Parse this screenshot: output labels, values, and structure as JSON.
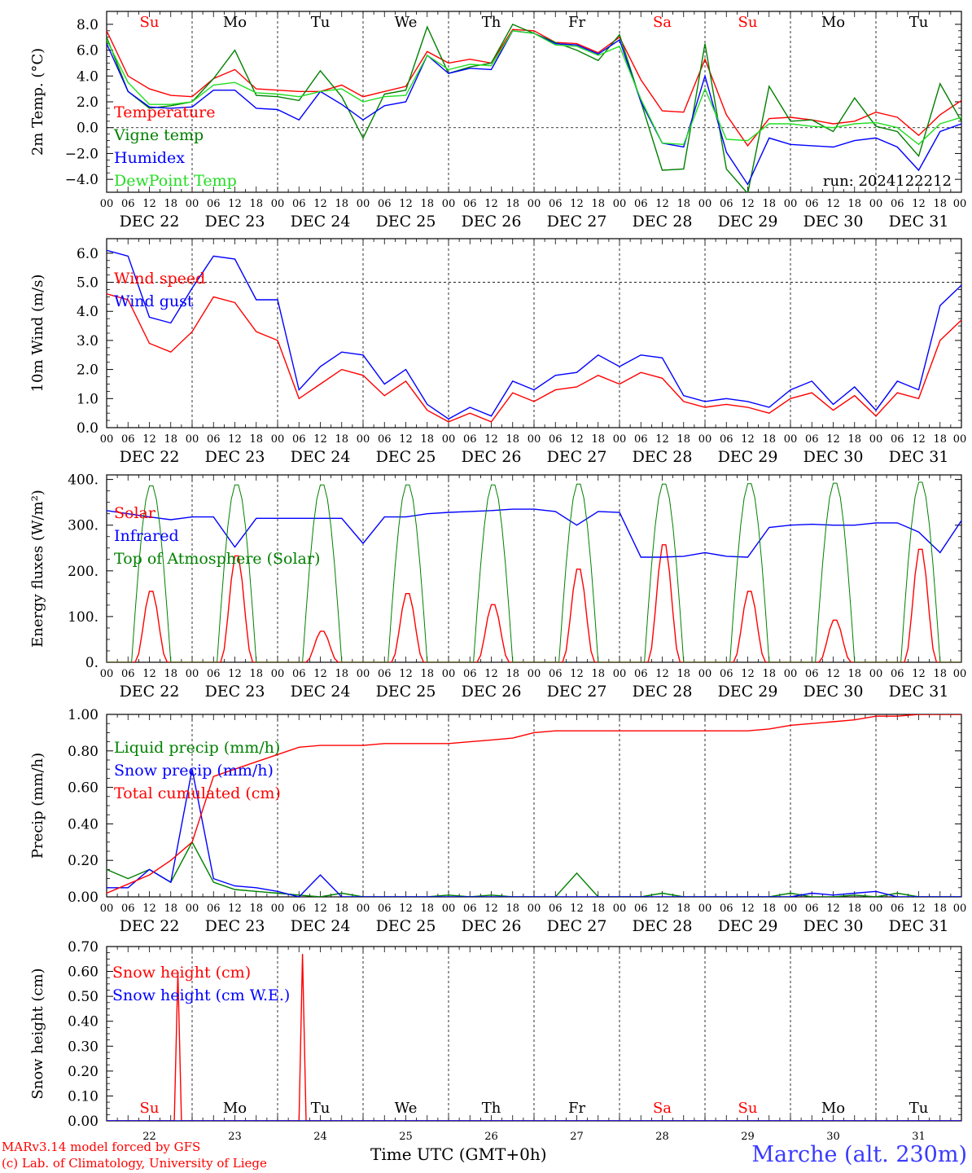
{
  "footer": {
    "model_line": "MARv3.14 model forced by GFS",
    "lab_line": "(c) Lab. of Climatology, University of Liege",
    "xaxis_label": "Time UTC (GMT+0h)",
    "station": "Marche (alt. 230m)"
  },
  "colors": {
    "red": "#ff0000",
    "darkgreen": "#008000",
    "blue": "#0000ff",
    "lightgreen": "#22dd22",
    "weekend": "#ff0000",
    "weekday": "#000000"
  },
  "days": {
    "names": [
      "Su",
      "Mo",
      "Tu",
      "We",
      "Th",
      "Fr",
      "Sa",
      "Su",
      "Mo",
      "Tu"
    ],
    "weekend": [
      true,
      false,
      false,
      false,
      false,
      false,
      true,
      true,
      false,
      false
    ],
    "dates": [
      "DEC 22",
      "DEC 23",
      "DEC 24",
      "DEC 25",
      "DEC 26",
      "DEC 27",
      "DEC 28",
      "DEC 29",
      "DEC 30",
      "DEC 31"
    ],
    "numbers": [
      "22",
      "23",
      "24",
      "25",
      "26",
      "27",
      "28",
      "29",
      "30",
      "31"
    ],
    "hour_ticks": [
      "00",
      "06",
      "12",
      "18"
    ],
    "final_tick": "00"
  },
  "chart_data": [
    {
      "type": "line",
      "ylabel": "2m Temp. (°C)",
      "ylim": [
        -5,
        9
      ],
      "yticks": [
        "8.0",
        "6.0",
        "4.0",
        "2.0",
        "0.0",
        "−2.0",
        "−4.0"
      ],
      "ytick_values": [
        8,
        6,
        4,
        2,
        0,
        -2,
        -4
      ],
      "reference_line": 0,
      "annotation": "run: 2024122212",
      "x_hours": [
        0,
        6,
        12,
        18,
        24,
        30,
        36,
        42,
        48,
        54,
        60,
        66,
        72,
        78,
        84,
        90,
        96,
        102,
        108,
        114,
        120,
        126,
        132,
        138,
        144,
        150,
        156,
        162,
        168,
        174,
        180,
        186,
        192,
        198,
        204,
        210,
        216,
        222,
        228,
        234,
        240
      ],
      "series": [
        {
          "name": "Temperature",
          "color": "red",
          "values": [
            7.5,
            4.0,
            3.0,
            2.5,
            2.4,
            3.8,
            4.5,
            3.0,
            2.9,
            2.8,
            2.8,
            3.3,
            2.4,
            2.8,
            3.2,
            5.9,
            5.0,
            5.3,
            5.0,
            7.6,
            7.5,
            6.6,
            6.5,
            5.8,
            7.0,
            3.7,
            1.3,
            1.2,
            5.3,
            1.0,
            -1.4,
            0.7,
            0.8,
            0.6,
            0.3,
            0.5,
            1.2,
            0.8,
            -0.6,
            1.0,
            2.1
          ]
        },
        {
          "name": "Vigne temp",
          "color": "darkgreen",
          "values": [
            7.0,
            2.8,
            1.5,
            1.7,
            2.0,
            3.8,
            6.0,
            2.5,
            2.4,
            2.1,
            4.4,
            2.4,
            -0.8,
            2.6,
            2.9,
            7.8,
            4.2,
            4.7,
            5.0,
            8.0,
            7.3,
            6.6,
            6.0,
            5.2,
            7.2,
            2.0,
            -3.3,
            -3.2,
            6.5,
            -3.2,
            -5.1,
            3.2,
            0.5,
            0.6,
            -0.3,
            2.3,
            0.1,
            -0.3,
            -2.2,
            3.4,
            0.5
          ]
        },
        {
          "name": "Humidex",
          "color": "blue",
          "values": [
            6.5,
            2.8,
            1.6,
            1.5,
            1.6,
            2.9,
            2.9,
            1.5,
            1.4,
            0.6,
            2.8,
            1.8,
            0.6,
            1.7,
            2.0,
            5.6,
            4.2,
            4.6,
            4.5,
            7.5,
            7.3,
            6.5,
            6.4,
            5.7,
            6.8,
            2.0,
            -1.2,
            -1.5,
            4.0,
            -1.9,
            -4.4,
            -0.8,
            -1.3,
            -1.4,
            -1.5,
            -1.0,
            -0.8,
            -1.5,
            -3.3,
            -0.3,
            0.3
          ]
        },
        {
          "name": "DewPoint Temp",
          "color": "lightgreen",
          "values": [
            6.8,
            3.5,
            1.8,
            1.8,
            2.0,
            3.3,
            3.5,
            2.7,
            2.6,
            2.4,
            2.8,
            3.0,
            2.0,
            2.4,
            2.5,
            5.6,
            4.5,
            4.9,
            4.8,
            7.5,
            7.3,
            6.4,
            6.3,
            5.6,
            6.3,
            2.2,
            -1.2,
            -1.3,
            3.0,
            -0.9,
            -1.0,
            0.3,
            0.3,
            0.1,
            0.0,
            0.3,
            0.4,
            0.0,
            -1.3,
            0.3,
            0.8
          ]
        }
      ]
    },
    {
      "type": "line",
      "ylabel": "10m Wind (m/s)",
      "ylim": [
        0,
        6.5
      ],
      "yticks": [
        "6.0",
        "5.0",
        "4.0",
        "3.0",
        "2.0",
        "1.0",
        "0.0"
      ],
      "ytick_values": [
        6,
        5,
        4,
        3,
        2,
        1,
        0
      ],
      "reference_line": 5,
      "x_hours": [
        0,
        6,
        12,
        18,
        24,
        30,
        36,
        42,
        48,
        54,
        60,
        66,
        72,
        78,
        84,
        90,
        96,
        102,
        108,
        114,
        120,
        126,
        132,
        138,
        144,
        150,
        156,
        162,
        168,
        174,
        180,
        186,
        192,
        198,
        204,
        210,
        216,
        222,
        228,
        234,
        240
      ],
      "series": [
        {
          "name": "Wind speed",
          "color": "red",
          "values": [
            4.6,
            4.4,
            2.9,
            2.6,
            3.3,
            4.5,
            4.3,
            3.3,
            3.0,
            1.0,
            1.5,
            2.0,
            1.8,
            1.1,
            1.6,
            0.6,
            0.2,
            0.5,
            0.2,
            1.2,
            0.9,
            1.3,
            1.4,
            1.8,
            1.5,
            1.9,
            1.7,
            0.9,
            0.7,
            0.8,
            0.7,
            0.5,
            1.0,
            1.2,
            0.6,
            1.1,
            0.4,
            1.2,
            1.0,
            3.0,
            3.7
          ]
        },
        {
          "name": "Wind gust",
          "color": "blue",
          "values": [
            6.1,
            5.9,
            3.8,
            3.6,
            4.8,
            5.9,
            5.8,
            4.4,
            4.4,
            1.3,
            2.1,
            2.6,
            2.5,
            1.5,
            2.0,
            0.8,
            0.3,
            0.7,
            0.4,
            1.6,
            1.3,
            1.8,
            1.9,
            2.5,
            2.1,
            2.5,
            2.4,
            1.1,
            0.9,
            1.0,
            0.9,
            0.7,
            1.3,
            1.6,
            0.8,
            1.4,
            0.6,
            1.6,
            1.3,
            4.2,
            4.9
          ]
        }
      ]
    },
    {
      "type": "line",
      "ylabel": "Energy fluxes (W/m²)",
      "ylim": [
        0,
        410
      ],
      "yticks": [
        "400.",
        "300.",
        "200.",
        "100.",
        "0."
      ],
      "ytick_values": [
        400,
        300,
        200,
        100,
        0
      ],
      "series": [
        {
          "name": "Solar",
          "color": "red",
          "day_peaks": [
            160,
            240,
            70,
            155,
            130,
            210,
            265,
            160,
            95,
            255
          ]
        },
        {
          "name": "Infrared",
          "color": "blue",
          "x_hours": [
            0,
            6,
            12,
            18,
            24,
            30,
            36,
            42,
            48,
            54,
            60,
            66,
            72,
            78,
            84,
            90,
            96,
            102,
            108,
            114,
            120,
            126,
            132,
            138,
            144,
            150,
            156,
            162,
            168,
            174,
            180,
            186,
            192,
            198,
            204,
            210,
            216,
            222,
            228,
            234,
            240
          ],
          "values": [
            332,
            325,
            318,
            312,
            318,
            318,
            252,
            315,
            315,
            315,
            315,
            315,
            260,
            318,
            318,
            325,
            328,
            330,
            332,
            335,
            335,
            330,
            300,
            330,
            328,
            230,
            230,
            232,
            240,
            232,
            230,
            295,
            300,
            302,
            300,
            300,
            305,
            305,
            285,
            240,
            310
          ]
        },
        {
          "name": "Top of Atmosphere (Solar)",
          "color": "darkgreen",
          "day_peaks": [
            390,
            392,
            392,
            392,
            392,
            394,
            394,
            395,
            396,
            398
          ]
        }
      ]
    },
    {
      "type": "line",
      "ylabel": "Precip (mm/h)",
      "ylim": [
        0,
        1.0
      ],
      "yticks": [
        "1.00",
        "0.80",
        "0.60",
        "0.40",
        "0.20",
        "0.00"
      ],
      "ytick_values": [
        1.0,
        0.8,
        0.6,
        0.4,
        0.2,
        0.0
      ],
      "x_hours": [
        0,
        6,
        12,
        18,
        24,
        30,
        36,
        42,
        48,
        54,
        60,
        66,
        72,
        78,
        84,
        90,
        96,
        102,
        108,
        114,
        120,
        126,
        132,
        138,
        144,
        150,
        156,
        162,
        168,
        174,
        180,
        186,
        192,
        198,
        204,
        210,
        216,
        222,
        228,
        234,
        240
      ],
      "series": [
        {
          "name": "Liquid precip (mm/h)",
          "color": "darkgreen",
          "values": [
            0.15,
            0.1,
            0.15,
            0.08,
            0.3,
            0.08,
            0.04,
            0.03,
            0.02,
            0.01,
            0.0,
            0.02,
            0.0,
            0.0,
            0.0,
            0.0,
            0.01,
            0.0,
            0.01,
            0.0,
            0.0,
            0.0,
            0.13,
            0.0,
            0.0,
            0.0,
            0.02,
            0.0,
            0.0,
            0.0,
            0.0,
            0.0,
            0.02,
            0.0,
            0.0,
            0.01,
            0.0,
            0.02,
            0.0,
            0.0,
            0.0
          ]
        },
        {
          "name": "Snow precip (mm/h)",
          "color": "blue",
          "values": [
            0.05,
            0.05,
            0.15,
            0.08,
            0.7,
            0.1,
            0.06,
            0.05,
            0.03,
            0.0,
            0.12,
            0.0,
            0.0,
            0.0,
            0.0,
            0.0,
            0.0,
            0.0,
            0.0,
            0.0,
            0.0,
            0.0,
            0.0,
            0.0,
            0.0,
            0.0,
            0.0,
            0.0,
            0.0,
            0.0,
            0.0,
            0.0,
            0.0,
            0.02,
            0.01,
            0.02,
            0.03,
            0.0,
            0.0,
            0.0,
            0.0
          ]
        },
        {
          "name": "Total cumulated (cm)",
          "color": "red",
          "values": [
            0.02,
            0.07,
            0.12,
            0.2,
            0.3,
            0.66,
            0.7,
            0.74,
            0.78,
            0.82,
            0.83,
            0.83,
            0.83,
            0.84,
            0.84,
            0.84,
            0.84,
            0.85,
            0.86,
            0.87,
            0.9,
            0.91,
            0.91,
            0.91,
            0.91,
            0.91,
            0.91,
            0.91,
            0.91,
            0.91,
            0.91,
            0.92,
            0.94,
            0.95,
            0.96,
            0.97,
            0.99,
            0.99,
            1.0,
            1.0,
            1.0
          ]
        }
      ]
    },
    {
      "type": "line",
      "ylabel": "Snow height (cm)",
      "ylim": [
        0,
        0.7
      ],
      "yticks": [
        "0.70",
        "0.60",
        "0.50",
        "0.40",
        "0.30",
        "0.20",
        "0.10",
        "0.00"
      ],
      "ytick_values": [
        0.7,
        0.6,
        0.5,
        0.4,
        0.3,
        0.2,
        0.1,
        0.0
      ],
      "series": [
        {
          "name": "Snow height (cm)",
          "color": "red",
          "spikes": [
            {
              "hour": 20,
              "value": 0.6
            },
            {
              "hour": 55,
              "value": 0.67
            }
          ]
        },
        {
          "name": "Snow height (cm W.E.)",
          "color": "blue",
          "spikes": []
        }
      ]
    }
  ]
}
